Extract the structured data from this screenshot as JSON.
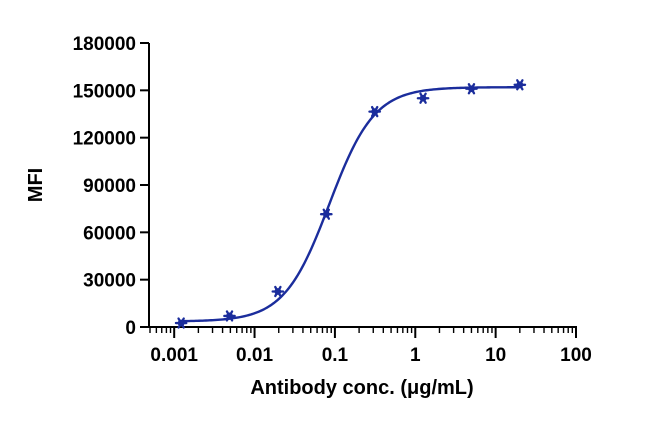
{
  "chart_data": {
    "type": "scatter",
    "title": "",
    "xlabel": "Antibody conc. (μg/mL)",
    "ylabel": "MFI",
    "x_scale": "log",
    "xlim": [
      0.0005,
      100
    ],
    "ylim": [
      0,
      180000
    ],
    "x_ticks": [
      {
        "value": 0.001,
        "label": "0.001"
      },
      {
        "value": 0.01,
        "label": "0.01"
      },
      {
        "value": 0.1,
        "label": "0.1"
      },
      {
        "value": 1,
        "label": "1"
      },
      {
        "value": 10,
        "label": "10"
      },
      {
        "value": 100,
        "label": "100"
      }
    ],
    "y_ticks": [
      {
        "value": 0,
        "label": "0"
      },
      {
        "value": 30000,
        "label": "30000"
      },
      {
        "value": 60000,
        "label": "60000"
      },
      {
        "value": 90000,
        "label": "90000"
      },
      {
        "value": 120000,
        "label": "120000"
      },
      {
        "value": 150000,
        "label": "150000"
      },
      {
        "value": 180000,
        "label": "180000"
      }
    ],
    "series": [
      {
        "x": [
          0.00122,
          0.00488,
          0.0195,
          0.0781,
          0.3125,
          1.25,
          5,
          20
        ],
        "y": [
          2500,
          7000,
          22500,
          71500,
          136500,
          145000,
          151000,
          153500
        ]
      }
    ],
    "fit_curve": {
      "model": "4PL",
      "bottom": 3500,
      "top": 152000,
      "ec50": 0.085,
      "hill": 1.55,
      "x_range": [
        0.0012,
        20
      ]
    },
    "grid": false,
    "legend": "none",
    "colors": {
      "series": "#1b2d9c",
      "axis": "#000000"
    }
  }
}
